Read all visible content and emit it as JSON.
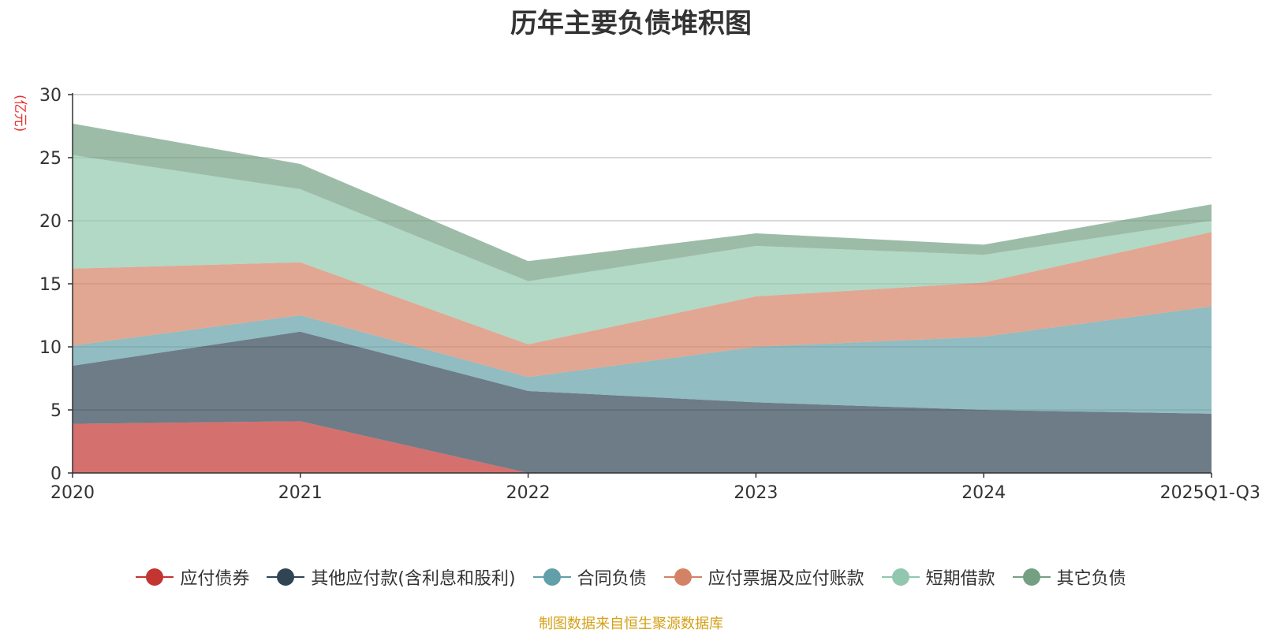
{
  "chart_data": {
    "type": "area",
    "title": "历年主要负债堆积图",
    "ylabel": "(亿元)",
    "xlabel": "",
    "categories": [
      "2020",
      "2021",
      "2022",
      "2023",
      "2024",
      "2025Q1-Q3"
    ],
    "y_ticks": [
      "0",
      "5",
      "10",
      "15",
      "20",
      "25",
      "30"
    ],
    "ylim": [
      0,
      30
    ],
    "stacked": true,
    "grid": true,
    "legend_position": "bottom",
    "series": [
      {
        "name": "应付债券",
        "color": "#c23531",
        "values": [
          3.9,
          4.1,
          0,
          0,
          0,
          0
        ]
      },
      {
        "name": "其他应付款(含利息和股利)",
        "color": "#2f4554",
        "values": [
          4.6,
          7.1,
          6.5,
          5.6,
          5.0,
          4.7
        ]
      },
      {
        "name": "合同负债",
        "color": "#61a0a8",
        "values": [
          1.6,
          1.3,
          1.1,
          4.4,
          5.8,
          8.5
        ]
      },
      {
        "name": "应付票据及应付账款",
        "color": "#d48265",
        "values": [
          6.1,
          4.2,
          2.6,
          4.0,
          4.3,
          5.9
        ]
      },
      {
        "name": "短期借款",
        "color": "#91c7ae",
        "values": [
          9.0,
          5.8,
          5.0,
          4.0,
          2.2,
          0.9
        ]
      },
      {
        "name": "其它负债",
        "color": "#749f83",
        "values": [
          2.5,
          2.0,
          1.6,
          1.0,
          0.8,
          1.3
        ]
      }
    ]
  },
  "footer": {
    "source": "制图数据来自恒生聚源数据库"
  }
}
